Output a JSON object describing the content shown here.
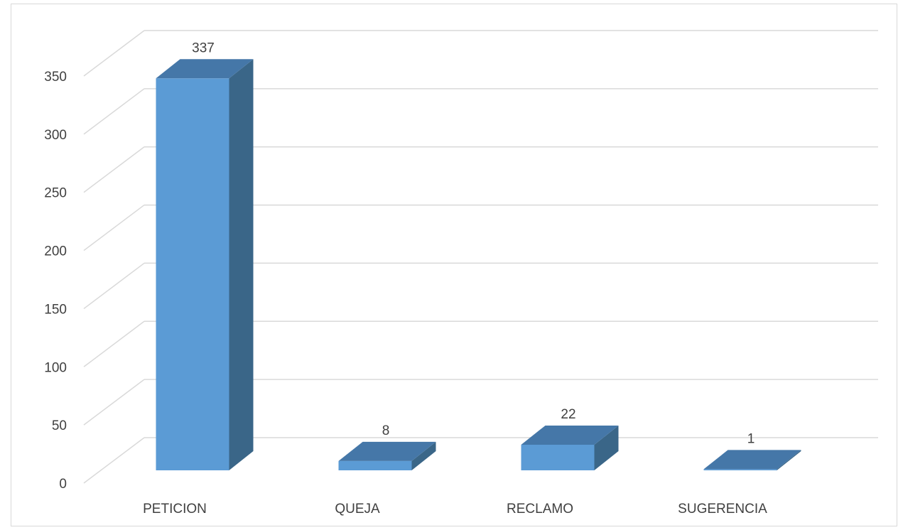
{
  "chart_data": {
    "type": "bar",
    "style": "3d-column",
    "categories": [
      "PETICION",
      "QUEJA",
      "RECLAMO",
      "SUGERENCIA"
    ],
    "values": [
      337,
      8,
      22,
      1
    ],
    "title": "",
    "xlabel": "",
    "ylabel": "",
    "ylim": [
      0,
      350
    ],
    "yticks": [
      0,
      50,
      100,
      150,
      200,
      250,
      300,
      350
    ],
    "ytick_labels": [
      "0",
      "50",
      "100",
      "150",
      "200",
      "250",
      "300",
      "350"
    ],
    "data_labels": [
      "337",
      "8",
      "22",
      "1"
    ],
    "grid": true,
    "legend": "none",
    "colors": {
      "front": "#5b9bd5",
      "side": "#3a6688",
      "top": "#4577a8",
      "grid": "#d9d9d9",
      "text": "#404040"
    }
  }
}
